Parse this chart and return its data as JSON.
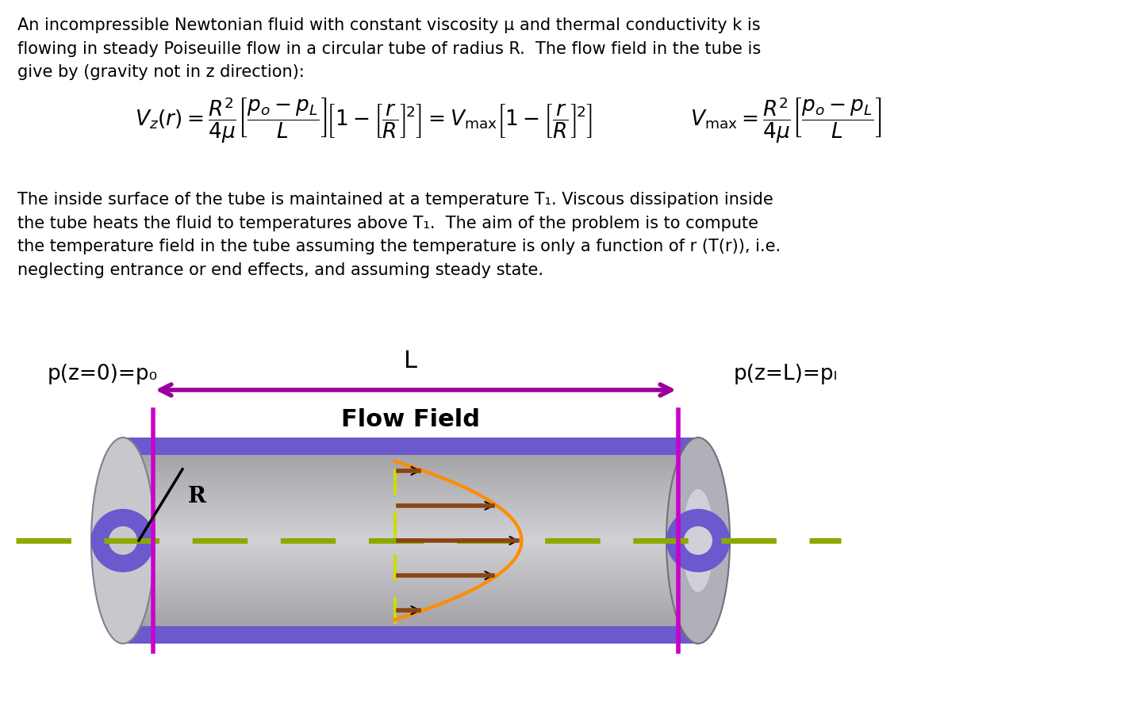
{
  "title_text": "An incompressible Newtonian fluid with constant viscosity μ and thermal conductivity k is\nflowing in steady Poiseuille flow in a circular tube of radius R.  The flow field in the tube is\ngive by (gravity not in z direction):",
  "formula1": "$\\mathit{V}_z(r) = \\dfrac{R^2}{4\\mu}\\left[\\dfrac{p_o - p_L}{L}\\right]\\!\\left[1 - \\left[\\dfrac{r}{R}\\right]^{\\!2}\\right] = V_{\\mathrm{max}}\\left[1 - \\left[\\dfrac{r}{R}\\right]^{\\!2}\\right]$",
  "formula2": "$V_{\\mathrm{max}} = \\dfrac{R^2}{4\\mu}\\left[\\dfrac{p_o - p_L}{L}\\right]$",
  "body_text": "The inside surface of the tube is maintained at a temperature T₁. Viscous dissipation inside\nthe tube heats the fluid to temperatures above T₁.  The aim of the problem is to compute\nthe temperature field in the tube assuming the temperature is only a function of r (T(r)), i.e.\nneglecting entrance or end effects, and assuming steady state.",
  "label_L": "L",
  "label_flow": "Flow Field",
  "label_R": "R",
  "label_p0": "p(z=0)=p₀",
  "label_pL": "p(z=L)=pₗ",
  "bg_color": "#ffffff",
  "tube_body_color": "#c0c0c0",
  "tube_band_color": "#6a5acd",
  "tube_band_dark": "#4b0082",
  "left_cap_color": "#b8b8b8",
  "right_cap_color": "#a0a0a8",
  "purple_line_color": "#cc00cc",
  "arrow_color": "#990099",
  "dashed_line_color": "#8aaa00",
  "parabola_color": "#ff8c00",
  "velocity_arrow_color": "#8b4513",
  "vert_dashed_color": "#ccdd00",
  "font_size_title": 15,
  "font_size_body": 15,
  "font_size_formula": 19
}
